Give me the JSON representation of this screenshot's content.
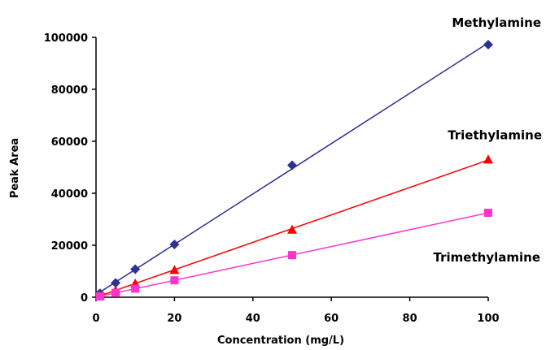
{
  "chart_data": {
    "type": "scatter",
    "title": "",
    "xlabel": "Concentration (mg/L)",
    "ylabel": "Peak Area",
    "xlim": [
      0,
      100
    ],
    "ylim": [
      0,
      100000
    ],
    "x_ticks": [
      0,
      20,
      40,
      60,
      80,
      100
    ],
    "y_ticks": [
      0,
      20000,
      40000,
      60000,
      80000,
      100000
    ],
    "grid": false,
    "legend": "none",
    "trendlines": true,
    "series": [
      {
        "name": "Methylamine",
        "color": "#2e3192",
        "line_color": "#2e3192",
        "marker": "diamond",
        "x": [
          1,
          5,
          10,
          20,
          50,
          100
        ],
        "y": [
          1500,
          5500,
          10800,
          20300,
          50800,
          97200
        ]
      },
      {
        "name": "Triethylamine",
        "color": "#ff0000",
        "line_color": "#ff0000",
        "marker": "triangle",
        "x": [
          1,
          5,
          10,
          20,
          50,
          100
        ],
        "y": [
          700,
          2700,
          5300,
          10500,
          26000,
          53000
        ]
      },
      {
        "name": "Trimethylamine",
        "color": "#ff33cc",
        "line_color": "#ff33cc",
        "marker": "square",
        "x": [
          1,
          5,
          10,
          20,
          50,
          100
        ],
        "y": [
          300,
          1700,
          3300,
          6500,
          16200,
          32500
        ]
      }
    ]
  }
}
